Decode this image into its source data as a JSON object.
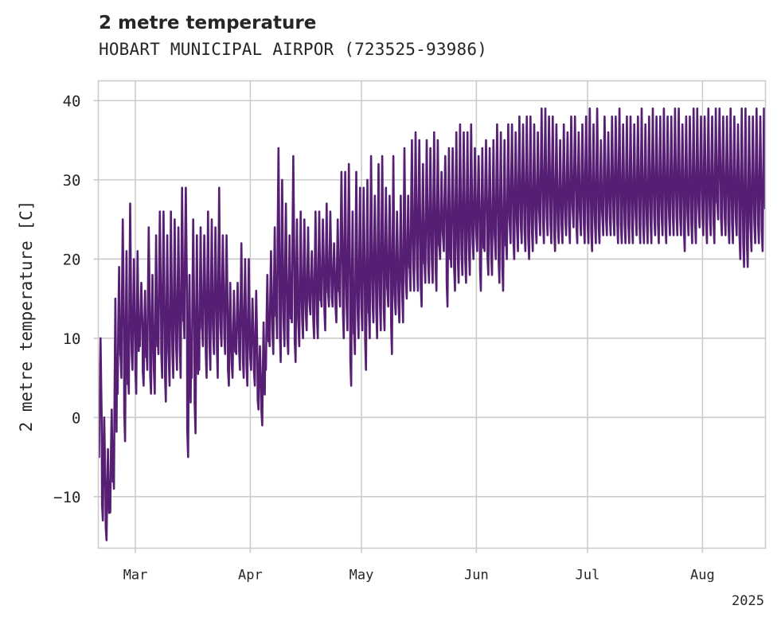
{
  "chart_data": {
    "type": "line",
    "title": "2 metre temperature",
    "subtitle": "HOBART MUNICIPAL AIRPOR (723525-93986)",
    "ylabel": "2 metre temperature [C]",
    "xlabel": "",
    "x_offset_label": "2025",
    "ylim": [
      -16.5,
      42.5
    ],
    "xlim": [
      "2025-02-19",
      "2025-08-18"
    ],
    "y_ticks": [
      -10,
      0,
      10,
      20,
      30,
      40
    ],
    "y_tick_labels": [
      "−10",
      "0",
      "10",
      "20",
      "30",
      "40"
    ],
    "x_ticks": [
      "2025-03-01",
      "2025-04-01",
      "2025-05-01",
      "2025-06-01",
      "2025-07-01",
      "2025-08-01"
    ],
    "x_tick_labels": [
      "Mar",
      "Apr",
      "May",
      "Jun",
      "Jul",
      "Aug"
    ],
    "grid": true,
    "legend": "none",
    "series": [
      {
        "color": "#561f73",
        "x_start": "2025-02-19",
        "x_end": "2025-08-17",
        "sampling": "hourly (approx.)",
        "daily_extremes_approx": {
          "dates": [
            "2025-02-19",
            "2025-02-20",
            "2025-02-21",
            "2025-02-22",
            "2025-02-23",
            "2025-02-24",
            "2025-02-25",
            "2025-02-26",
            "2025-02-27",
            "2025-02-28",
            "2025-03-01",
            "2025-03-02",
            "2025-03-03",
            "2025-03-04",
            "2025-03-05",
            "2025-03-06",
            "2025-03-07",
            "2025-03-08",
            "2025-03-09",
            "2025-03-10",
            "2025-03-11",
            "2025-03-12",
            "2025-03-13",
            "2025-03-14",
            "2025-03-15",
            "2025-03-16",
            "2025-03-17",
            "2025-03-18",
            "2025-03-19",
            "2025-03-20",
            "2025-03-21",
            "2025-03-22",
            "2025-03-23",
            "2025-03-24",
            "2025-03-25",
            "2025-03-26",
            "2025-03-27",
            "2025-03-28",
            "2025-03-29",
            "2025-03-30",
            "2025-03-31",
            "2025-04-01",
            "2025-04-02",
            "2025-04-03",
            "2025-04-04",
            "2025-04-05",
            "2025-04-06",
            "2025-04-07",
            "2025-04-08",
            "2025-04-09",
            "2025-04-10",
            "2025-04-11",
            "2025-04-12",
            "2025-04-13",
            "2025-04-14",
            "2025-04-15",
            "2025-04-16",
            "2025-04-17",
            "2025-04-18",
            "2025-04-19",
            "2025-04-20",
            "2025-04-21",
            "2025-04-22",
            "2025-04-23",
            "2025-04-24",
            "2025-04-25",
            "2025-04-26",
            "2025-04-27",
            "2025-04-28",
            "2025-04-29",
            "2025-04-30",
            "2025-05-01",
            "2025-05-02",
            "2025-05-03",
            "2025-05-04",
            "2025-05-05",
            "2025-05-06",
            "2025-05-07",
            "2025-05-08",
            "2025-05-09",
            "2025-05-10",
            "2025-05-11",
            "2025-05-12",
            "2025-05-13",
            "2025-05-14",
            "2025-05-15",
            "2025-05-16",
            "2025-05-17",
            "2025-05-18",
            "2025-05-19",
            "2025-05-20",
            "2025-05-21",
            "2025-05-22",
            "2025-05-23",
            "2025-05-24",
            "2025-05-25",
            "2025-05-26",
            "2025-05-27",
            "2025-05-28",
            "2025-05-29",
            "2025-05-30",
            "2025-05-31",
            "2025-06-01",
            "2025-06-02",
            "2025-06-03",
            "2025-06-04",
            "2025-06-05",
            "2025-06-06",
            "2025-06-07",
            "2025-06-08",
            "2025-06-09",
            "2025-06-10",
            "2025-06-11",
            "2025-06-12",
            "2025-06-13",
            "2025-06-14",
            "2025-06-15",
            "2025-06-16",
            "2025-06-17",
            "2025-06-18",
            "2025-06-19",
            "2025-06-20",
            "2025-06-21",
            "2025-06-22",
            "2025-06-23",
            "2025-06-24",
            "2025-06-25",
            "2025-06-26",
            "2025-06-27",
            "2025-06-28",
            "2025-06-29",
            "2025-06-30",
            "2025-07-01",
            "2025-07-02",
            "2025-07-03",
            "2025-07-04",
            "2025-07-05",
            "2025-07-06",
            "2025-07-07",
            "2025-07-08",
            "2025-07-09",
            "2025-07-10",
            "2025-07-11",
            "2025-07-12",
            "2025-07-13",
            "2025-07-14",
            "2025-07-15",
            "2025-07-16",
            "2025-07-17",
            "2025-07-18",
            "2025-07-19",
            "2025-07-20",
            "2025-07-21",
            "2025-07-22",
            "2025-07-23",
            "2025-07-24",
            "2025-07-25",
            "2025-07-26",
            "2025-07-27",
            "2025-07-28",
            "2025-07-29",
            "2025-07-30",
            "2025-07-31",
            "2025-08-01",
            "2025-08-02",
            "2025-08-03",
            "2025-08-04",
            "2025-08-05",
            "2025-08-06",
            "2025-08-07",
            "2025-08-08",
            "2025-08-09",
            "2025-08-10",
            "2025-08-11",
            "2025-08-12",
            "2025-08-13",
            "2025-08-14",
            "2025-08-15",
            "2025-08-16",
            "2025-08-17"
          ],
          "min": [
            -5,
            -13,
            -15.5,
            -12,
            -9,
            3,
            5,
            -3,
            3,
            6,
            3,
            9,
            4,
            6,
            3,
            3,
            8,
            5,
            2,
            4,
            5,
            6,
            5,
            10,
            -5,
            5,
            -2,
            6,
            9,
            5,
            6,
            8,
            5,
            9,
            8,
            4,
            5,
            8,
            6,
            5,
            4,
            6,
            4,
            1,
            -1,
            6,
            9,
            8,
            10,
            7,
            9,
            8,
            12,
            7,
            9,
            10,
            11,
            13,
            10,
            10,
            14,
            11,
            14,
            14,
            12,
            14,
            10,
            11,
            4,
            8,
            10,
            11,
            6,
            10,
            12,
            10,
            11,
            11,
            14,
            8,
            13,
            12,
            12,
            15,
            16,
            16,
            16,
            14,
            17,
            17,
            17,
            16,
            20,
            21,
            14,
            19,
            16,
            17,
            18,
            17,
            18,
            20,
            21,
            16,
            21,
            18,
            18,
            20,
            17,
            16,
            20,
            22,
            20,
            21,
            22,
            21,
            20,
            21,
            22,
            23,
            22,
            23,
            22,
            21,
            22,
            22,
            23,
            22,
            24,
            22,
            23,
            22,
            22,
            21,
            22,
            22,
            23,
            23,
            23,
            23,
            22,
            22,
            22,
            22,
            22,
            23,
            22,
            22,
            22,
            22,
            23,
            22,
            23,
            22,
            23,
            23,
            23,
            23,
            21,
            23,
            22,
            22,
            24,
            23,
            22,
            23,
            22,
            25,
            23,
            23,
            22,
            22,
            23,
            20,
            19,
            19,
            21,
            22,
            22,
            21,
            22,
            20,
            21,
            23,
            22,
            21
          ],
          "max": [
            10,
            0,
            -4,
            1,
            15,
            19,
            25,
            21,
            27,
            20,
            21,
            17,
            16,
            24,
            18,
            23,
            26,
            26,
            23,
            26,
            25,
            24,
            29,
            29,
            18,
            25,
            23,
            24,
            23,
            26,
            25,
            24,
            29,
            23,
            23,
            17,
            16,
            17,
            22,
            20,
            20,
            15,
            16,
            9,
            12,
            18,
            21,
            24,
            34,
            30,
            27,
            23,
            33,
            25,
            26,
            25,
            24,
            21,
            26,
            26,
            25,
            27,
            26,
            22,
            25,
            31,
            31,
            32,
            26,
            31,
            29,
            29,
            30,
            33,
            28,
            32,
            33,
            29,
            28,
            33,
            26,
            28,
            34,
            28,
            35,
            36,
            35,
            32,
            35,
            34,
            36,
            35,
            31,
            33,
            34,
            34,
            36,
            37,
            36,
            36,
            37,
            34,
            33,
            34,
            35,
            34,
            35,
            37,
            36,
            35,
            37,
            37,
            36,
            38,
            37,
            38,
            38,
            37,
            36,
            39,
            39,
            38,
            38,
            37,
            35,
            37,
            36,
            38,
            38,
            36,
            37,
            38,
            39,
            37,
            39,
            35,
            38,
            36,
            38,
            38,
            39,
            37,
            38,
            38,
            37,
            38,
            39,
            37,
            38,
            39,
            38,
            38,
            39,
            38,
            38,
            39,
            39,
            37,
            38,
            38,
            39,
            39,
            38,
            38,
            39,
            38,
            39,
            39,
            38,
            38,
            39,
            38,
            37,
            39,
            39,
            38,
            38,
            39,
            38,
            39,
            38,
            39,
            38,
            39,
            38,
            39
          ]
        }
      }
    ]
  }
}
